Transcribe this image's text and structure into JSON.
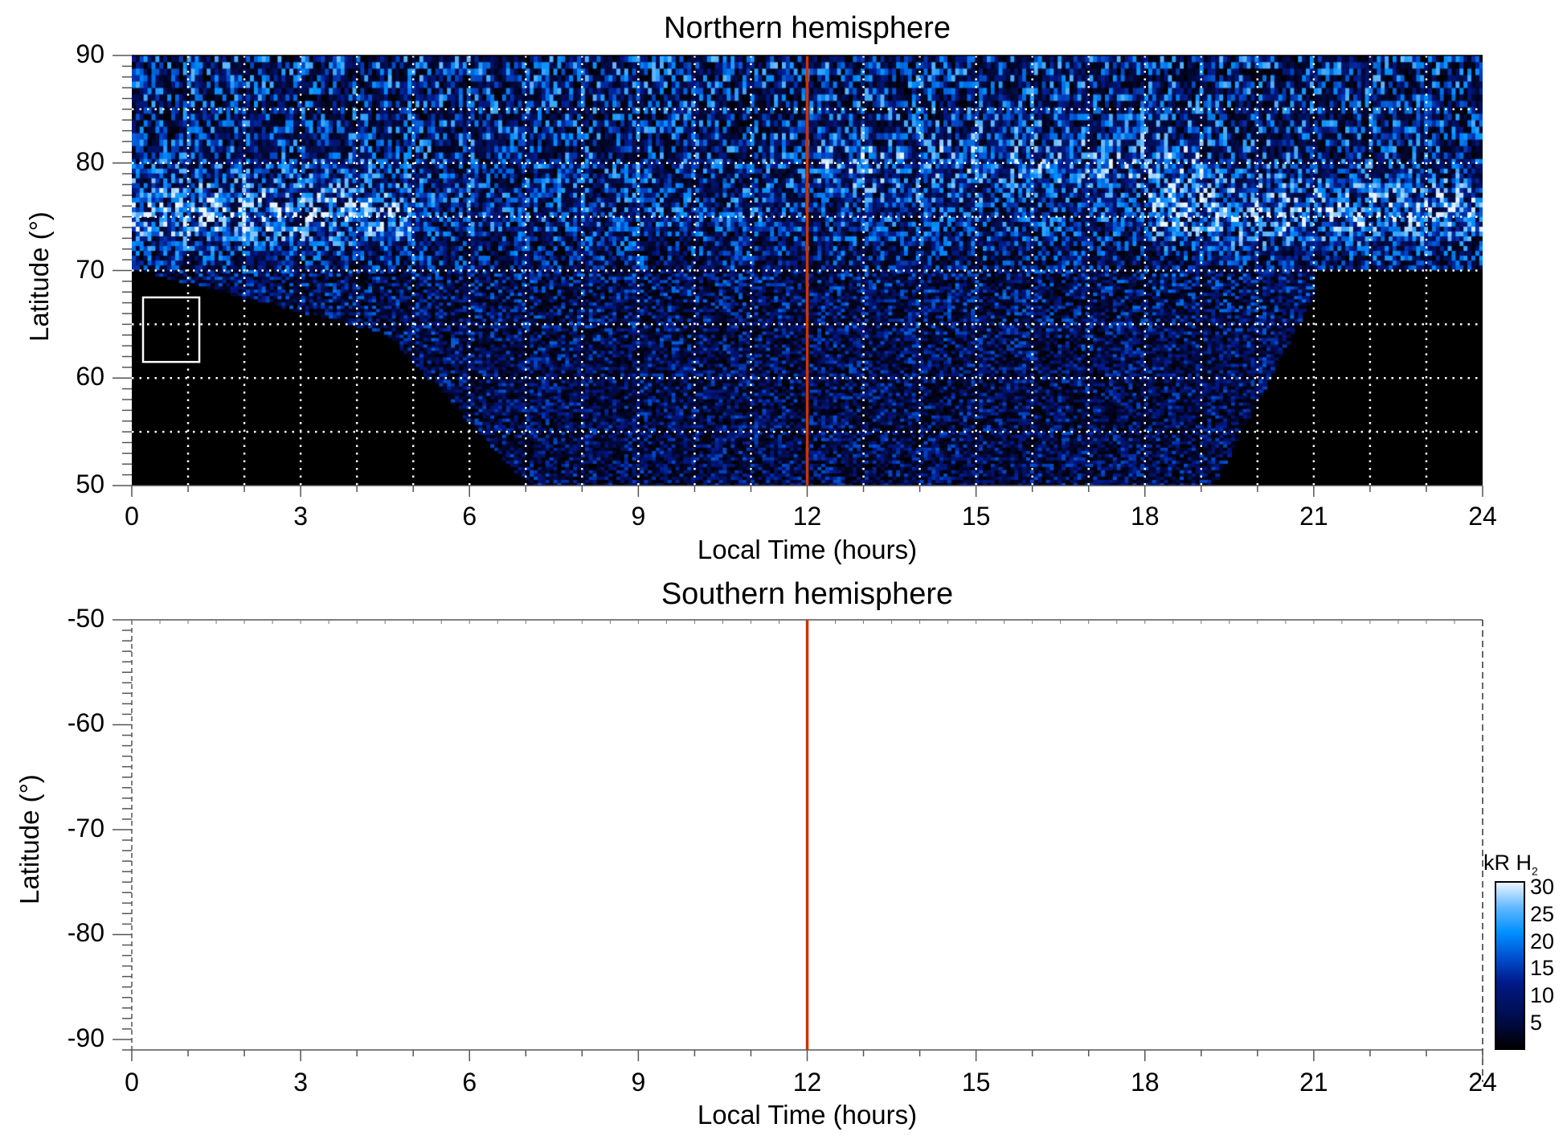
{
  "chart_data": [
    {
      "type": "heatmap",
      "title": "Northern hemisphere",
      "xlabel": "Local Time (hours)",
      "ylabel": "Latitude (°)",
      "xlim": [
        0,
        24
      ],
      "ylim": [
        50,
        90
      ],
      "xticks": [
        "0",
        "3",
        "6",
        "9",
        "12",
        "15",
        "18",
        "21",
        "24"
      ],
      "yticks": [
        "90",
        "80",
        "70",
        "60",
        "50"
      ],
      "grid": true,
      "marker_line_x": 12,
      "box": {
        "lt": [
          0.2,
          1.2
        ],
        "lat": [
          61.5,
          67.5
        ]
      }
    },
    {
      "type": "heatmap",
      "title": "Southern hemisphere",
      "xlabel": "Local Time (hours)",
      "ylabel": "Latitude (°)",
      "xlim": [
        0,
        24
      ],
      "ylim": [
        -91,
        -50
      ],
      "xticks": [
        "0",
        "3",
        "6",
        "9",
        "12",
        "15",
        "18",
        "21",
        "24"
      ],
      "yticks": [
        "-50",
        "-60",
        "-70",
        "-80",
        "-90"
      ],
      "grid": false,
      "marker_line_x": 12
    }
  ],
  "colorbar": {
    "label": "kR H",
    "label_sub": "2",
    "range": [
      0,
      31
    ],
    "ticks": [
      "30",
      "25",
      "20",
      "15",
      "10",
      "5"
    ],
    "tick_values": [
      30,
      25,
      20,
      15,
      10,
      5
    ]
  },
  "colors": {
    "marker_line": "#cc3300",
    "grid": "#ffffff"
  }
}
